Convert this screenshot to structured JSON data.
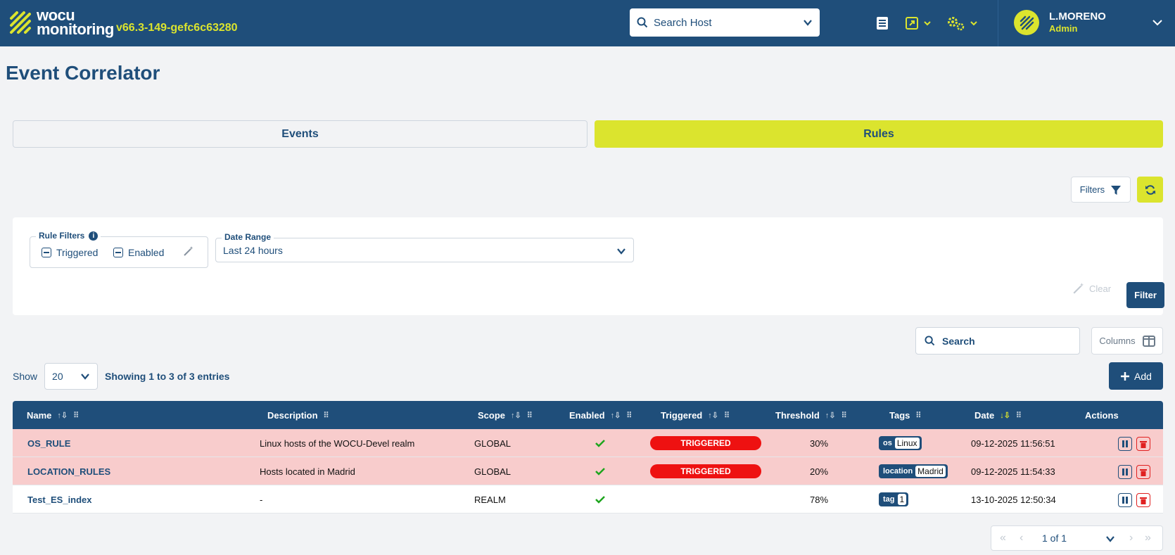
{
  "header": {
    "logo_line1": "wocu",
    "logo_line2": "monitoring",
    "version": "v66.3-149-gefc6c63280",
    "host_search_placeholder": "Search Host",
    "user_name": "L.MORENO",
    "user_role": "Admin"
  },
  "page": {
    "title": "Event Correlator"
  },
  "tabs": [
    {
      "label": "Events",
      "active": false
    },
    {
      "label": "Rules",
      "active": true
    }
  ],
  "toolbar": {
    "filters_label": "Filters"
  },
  "filters": {
    "rule_filters_label": "Rule Filters",
    "triggered_label": "Triggered",
    "enabled_label": "Enabled",
    "date_range_label": "Date Range",
    "date_range_value": "Last 24 hours",
    "clear_label": "Clear",
    "filter_label": "Filter"
  },
  "table_tools": {
    "search_placeholder": "Search",
    "columns_label": "Columns",
    "show_label": "Show",
    "page_size": "20",
    "showing_prefix": "Showing",
    "showing_from": "1",
    "showing_to_word": "to",
    "showing_to": "3",
    "showing_of_word": "of",
    "showing_total": "3",
    "showing_suffix": "entries",
    "add_label": "Add"
  },
  "columns": [
    "Name",
    "Description",
    "Scope",
    "Enabled",
    "Triggered",
    "Threshold",
    "Tags",
    "Date",
    "Actions"
  ],
  "rows": [
    {
      "name": "OS_RULE",
      "description": "Linux hosts of the WOCU-Devel realm",
      "scope": "GLOBAL",
      "enabled": true,
      "triggered": "TRIGGERED",
      "threshold": "30%",
      "tag_key": "os",
      "tag_value": "Linux",
      "date": "09-12-2025 11:56:51"
    },
    {
      "name": "LOCATION_RULES",
      "description": "Hosts located in Madrid",
      "scope": "GLOBAL",
      "enabled": true,
      "triggered": "TRIGGERED",
      "threshold": "20%",
      "tag_key": "location",
      "tag_value": "Madrid",
      "date": "09-12-2025 11:54:33"
    },
    {
      "name": "Test_ES_index",
      "description": "-",
      "scope": "REALM",
      "enabled": true,
      "triggered": "",
      "threshold": "78%",
      "tag_key": "tag",
      "tag_value": "1",
      "date": "13-10-2025 12:50:34"
    }
  ],
  "pagination": {
    "label": "1 of 1"
  },
  "colors": {
    "primary": "#1f4e7a",
    "accent": "#dbe42e",
    "triggered": "#ee1111",
    "triggered_row": "#f8cccc"
  }
}
